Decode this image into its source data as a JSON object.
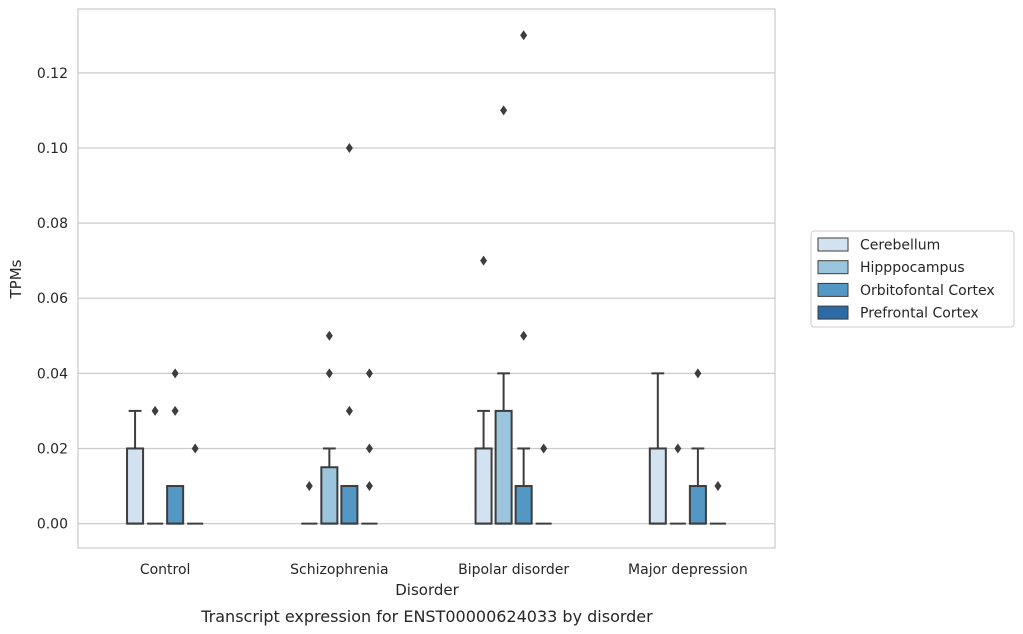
{
  "chart_data": {
    "type": "boxplot",
    "caption": "Transcript expression for ENST00000624033 by disorder",
    "xlabel": "Disorder",
    "ylabel": "TPMs",
    "ylim": [
      -0.0065,
      0.137
    ],
    "yticks": [
      "0.00",
      "0.02",
      "0.04",
      "0.06",
      "0.08",
      "0.10",
      "0.12"
    ],
    "categories": [
      "Control",
      "Schizophrenia",
      "Bipolar disorder",
      "Major depression"
    ],
    "grid": true,
    "legend_position": "right",
    "series": [
      {
        "name": "Cerebellum",
        "color": "#d2e2f0",
        "boxes": [
          {
            "q1": 0,
            "median": 0,
            "q3": 0.02,
            "whislo": 0,
            "whishi": 0.03,
            "fliers": []
          },
          {
            "q1": 0,
            "median": 0,
            "q3": 0,
            "whislo": 0,
            "whishi": 0,
            "fliers": [
              0.01
            ]
          },
          {
            "q1": 0,
            "median": 0,
            "q3": 0.02,
            "whislo": 0,
            "whishi": 0.03,
            "fliers": [
              0.07
            ]
          },
          {
            "q1": 0,
            "median": 0,
            "q3": 0.02,
            "whislo": 0,
            "whishi": 0.04,
            "fliers": []
          }
        ]
      },
      {
        "name": "Hipppocampus",
        "color": "#9ac5dd",
        "boxes": [
          {
            "q1": 0,
            "median": 0,
            "q3": 0,
            "whislo": 0,
            "whishi": 0,
            "fliers": [
              0.03
            ]
          },
          {
            "q1": 0,
            "median": 0,
            "q3": 0.015,
            "whislo": 0,
            "whishi": 0.02,
            "fliers": [
              0.04,
              0.05
            ]
          },
          {
            "q1": 0,
            "median": 0,
            "q3": 0.03,
            "whislo": 0,
            "whishi": 0.04,
            "fliers": [
              0.11
            ]
          },
          {
            "q1": 0,
            "median": 0,
            "q3": 0,
            "whislo": 0,
            "whishi": 0,
            "fliers": [
              0.02
            ]
          }
        ]
      },
      {
        "name": "Orbitofontal Cortex",
        "color": "#5397c5",
        "boxes": [
          {
            "q1": 0,
            "median": 0,
            "q3": 0.01,
            "whislo": 0,
            "whishi": 0.01,
            "fliers": [
              0.03,
              0.04
            ]
          },
          {
            "q1": 0,
            "median": 0,
            "q3": 0.01,
            "whislo": 0,
            "whishi": 0.01,
            "fliers": [
              0.03,
              0.1
            ]
          },
          {
            "q1": 0,
            "median": 0,
            "q3": 0.01,
            "whislo": 0,
            "whishi": 0.02,
            "fliers": [
              0.05,
              0.13
            ]
          },
          {
            "q1": 0,
            "median": 0,
            "q3": 0.01,
            "whislo": 0,
            "whishi": 0.02,
            "fliers": [
              0.04
            ]
          }
        ]
      },
      {
        "name": "Prefrontal Cortex",
        "color": "#2c6ba6",
        "boxes": [
          {
            "q1": 0,
            "median": 0,
            "q3": 0,
            "whislo": 0,
            "whishi": 0,
            "fliers": [
              0.02
            ]
          },
          {
            "q1": 0,
            "median": 0,
            "q3": 0,
            "whislo": 0,
            "whishi": 0,
            "fliers": [
              0.01,
              0.02,
              0.04
            ]
          },
          {
            "q1": 0,
            "median": 0,
            "q3": 0,
            "whislo": 0,
            "whishi": 0,
            "fliers": [
              0.02
            ]
          },
          {
            "q1": 0,
            "median": 0,
            "q3": 0,
            "whislo": 0,
            "whishi": 0,
            "fliers": [
              0.01
            ]
          }
        ]
      }
    ]
  }
}
